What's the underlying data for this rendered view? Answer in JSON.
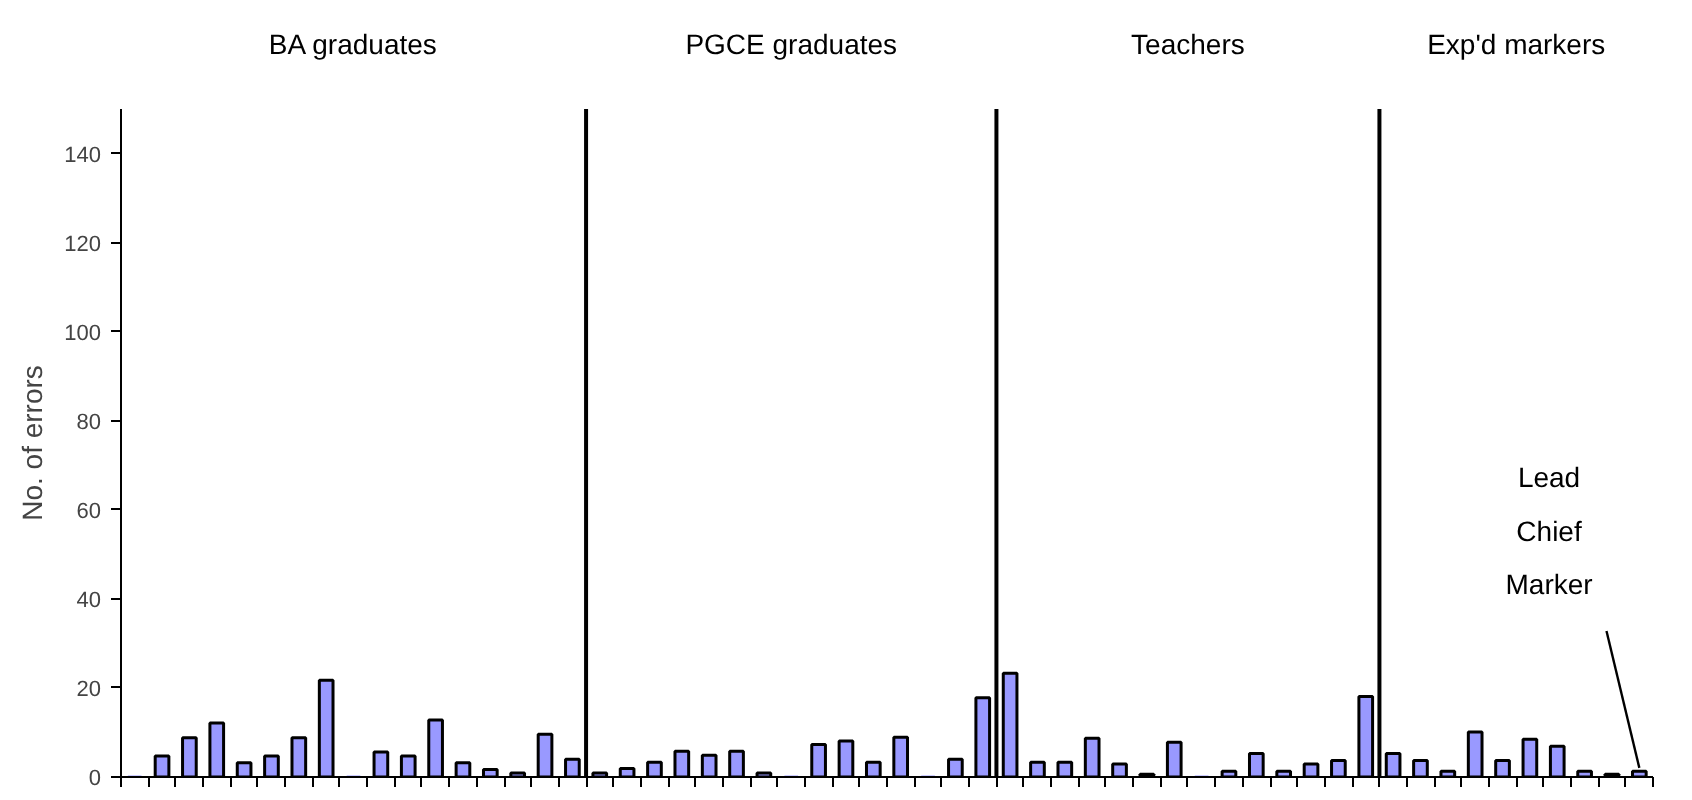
{
  "chart_data": {
    "type": "bar",
    "ylabel": "No. of errors",
    "categories": [
      null,
      null,
      null,
      null,
      null,
      null,
      null,
      null,
      null,
      null,
      null,
      null,
      null,
      null,
      null,
      null,
      null,
      null,
      null,
      null,
      null,
      null,
      null,
      null,
      null,
      null,
      null,
      null,
      null,
      null,
      null,
      null,
      null,
      null,
      null,
      null,
      null,
      null,
      null,
      null,
      null,
      null,
      null,
      null,
      null,
      null,
      null,
      null,
      null,
      null,
      null,
      null,
      null,
      null,
      null,
      null
    ],
    "values": [
      0,
      4.7,
      8.8,
      12.1,
      3.2,
      4.7,
      8.8,
      21.7,
      0,
      5.6,
      4.7,
      12.8,
      3.2,
      1.7,
      0.9,
      9.6,
      4.0,
      0.9,
      1.9,
      3.3,
      5.8,
      4.9,
      5.8,
      0.9,
      0,
      7.3,
      8.1,
      3.3,
      8.9,
      0,
      4.0,
      17.8,
      23.3,
      3.3,
      3.3,
      8.7,
      2.9,
      0.6,
      7.8,
      0,
      1.3,
      5.3,
      1.3,
      2.9,
      3.7,
      18.1,
      5.3,
      3.7,
      1.3,
      10.1,
      3.7,
      8.5,
      6.9,
      1.3,
      0.6,
      1.3
    ],
    "color": "#9999ff",
    "ylim": [
      0,
      150
    ],
    "yticks": [
      0,
      20,
      40,
      60,
      80,
      100,
      120,
      140
    ],
    "tick_labels": "y",
    "grid": false,
    "annotations": [
      "BA graduates",
      "PGCE graduates",
      "Teachers",
      "Exp'd markers",
      "Lead Chief Marker"
    ]
  }
}
